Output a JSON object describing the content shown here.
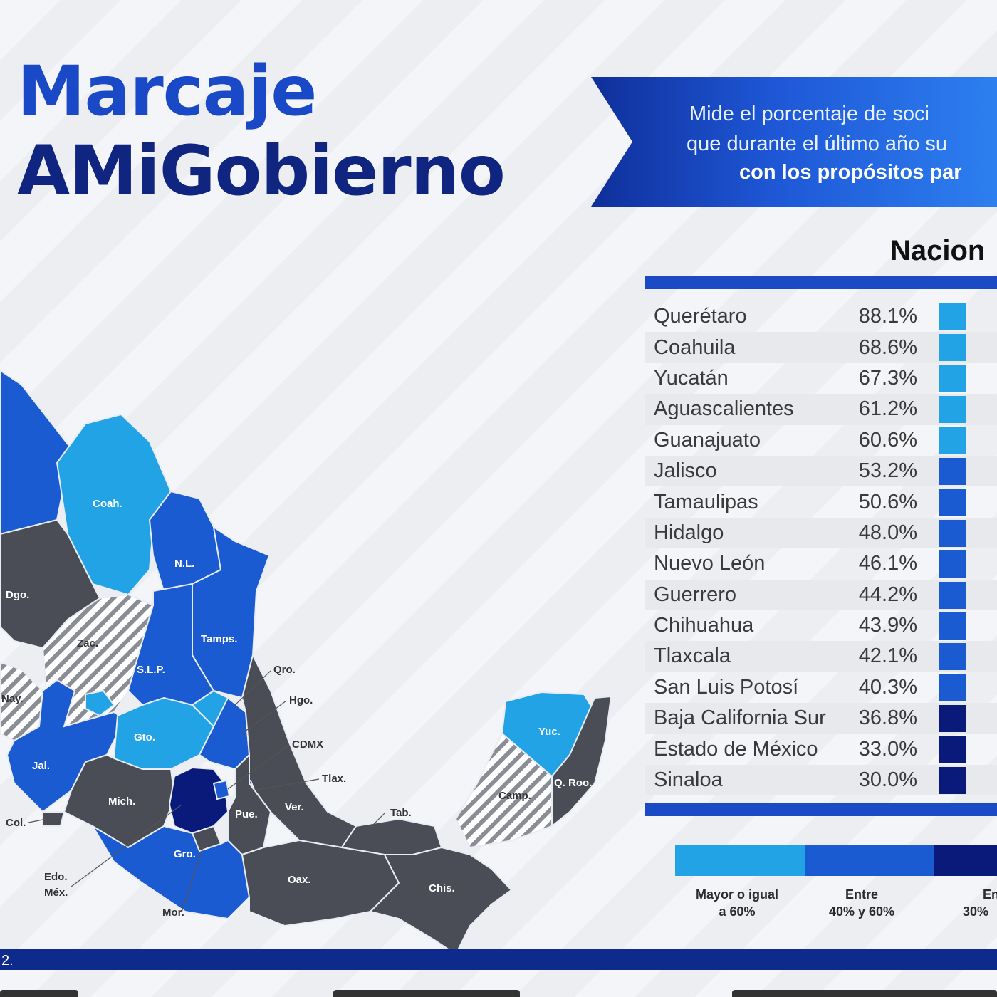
{
  "title": {
    "line1": "Marcaje",
    "line2": "AMiGobierno"
  },
  "banner": {
    "line1": "Mide el porcentaje de soci",
    "line2": "que durante el último año su",
    "line3": "con los propósitos par"
  },
  "table_title": "Nacion",
  "colors": {
    "high": "#22a3e6",
    "mid": "#1b5bd2",
    "low": "#0a1a7a",
    "nodata": "#4a4d55"
  },
  "states": [
    {
      "name": "Querétaro",
      "value": "88.1%",
      "tier": "high"
    },
    {
      "name": "Coahuila",
      "value": "68.6%",
      "tier": "high"
    },
    {
      "name": "Yucatán",
      "value": "67.3%",
      "tier": "high"
    },
    {
      "name": "Aguascalientes",
      "value": "61.2%",
      "tier": "high"
    },
    {
      "name": "Guanajuato",
      "value": "60.6%",
      "tier": "high"
    },
    {
      "name": "Jalisco",
      "value": "53.2%",
      "tier": "mid"
    },
    {
      "name": "Tamaulipas",
      "value": "50.6%",
      "tier": "mid"
    },
    {
      "name": "Hidalgo",
      "value": "48.0%",
      "tier": "mid"
    },
    {
      "name": "Nuevo León",
      "value": "46.1%",
      "tier": "mid"
    },
    {
      "name": "Guerrero",
      "value": "44.2%",
      "tier": "mid"
    },
    {
      "name": "Chihuahua",
      "value": "43.9%",
      "tier": "mid"
    },
    {
      "name": "Tlaxcala",
      "value": "42.1%",
      "tier": "mid"
    },
    {
      "name": "San Luis Potosí",
      "value": "40.3%",
      "tier": "mid"
    },
    {
      "name": "Baja California Sur",
      "value": "36.8%",
      "tier": "low"
    },
    {
      "name": "Estado de México",
      "value": "33.0%",
      "tier": "low"
    },
    {
      "name": "Sinaloa",
      "value": "30.0%",
      "tier": "low"
    }
  ],
  "legend": {
    "high_line1": "Mayor o igual",
    "high_line2": "a 60%",
    "mid_line1": "Entre",
    "mid_line2": "40% y 60%",
    "low_line1": "En",
    "low_line2": "30%"
  },
  "map_labels": {
    "coah": "Coah.",
    "nl": "N.L.",
    "dgo": "Dgo.",
    "zac": "Zac.",
    "tamps": "Tamps.",
    "slp": "S.L.P.",
    "qro": "Qro.",
    "hgo": "Hgo.",
    "nay": "Nay.",
    "gto": "Gto.",
    "cdmx": "CDMX",
    "jal": "Jal.",
    "tlax": "Tlax.",
    "mich": "Mich.",
    "pue": "Pue.",
    "ver": "Ver.",
    "tab": "Tab.",
    "col": "Col.",
    "gro": "Gro.",
    "edo_mex_1": "Edo.",
    "edo_mex_2": "Méx.",
    "oax": "Oax.",
    "chis": "Chis.",
    "mor": "Mor.",
    "yuc": "Yuc.",
    "camp": "Camp.",
    "qroo": "Q. Roo."
  },
  "footer_text": "2."
}
